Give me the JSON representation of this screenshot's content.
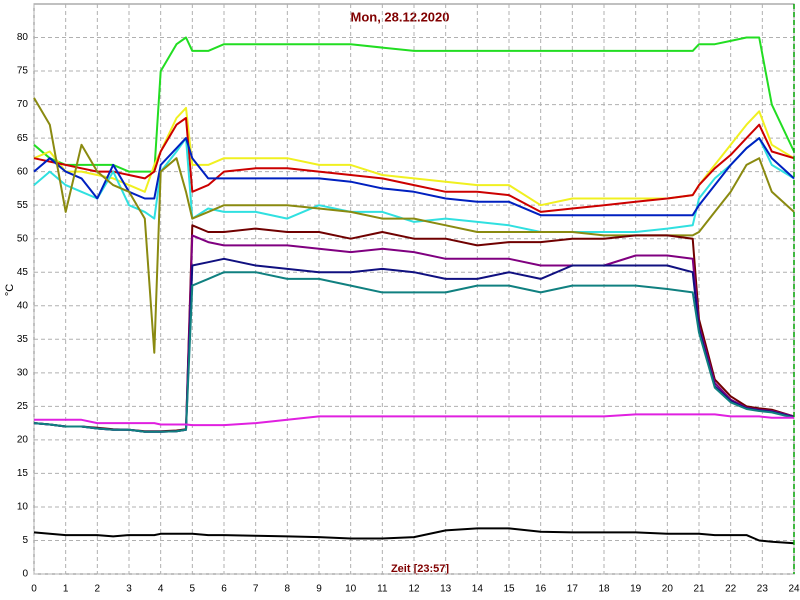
{
  "chart_data": {
    "type": "line",
    "title": "Mon, 28.12.2020",
    "y_label": "°C",
    "x_label": "Zeit [23:57]",
    "x": [
      0,
      0.5,
      1,
      1.5,
      2,
      2.5,
      3,
      3.5,
      3.8,
      4,
      4.5,
      4.8,
      5,
      5.5,
      6,
      7,
      8,
      9,
      10,
      11,
      12,
      13,
      14,
      15,
      16,
      17,
      18,
      19,
      20,
      20.8,
      21,
      21.5,
      22,
      22.5,
      22.9,
      23.3,
      24
    ],
    "xlim": [
      0,
      24
    ],
    "xticks": [
      0,
      1,
      2,
      3,
      4,
      5,
      6,
      7,
      8,
      9,
      10,
      11,
      12,
      13,
      14,
      15,
      16,
      17,
      18,
      19,
      20,
      21,
      22,
      23,
      24
    ],
    "ylim": [
      0,
      85
    ],
    "yticks": [
      0,
      5,
      10,
      15,
      20,
      25,
      30,
      35,
      40,
      45,
      50,
      55,
      60,
      65,
      70,
      75,
      80
    ],
    "grid": true,
    "series": [
      {
        "color": "#22dd22",
        "values": [
          64,
          62,
          61,
          61,
          61,
          61,
          60,
          60,
          60,
          75,
          79,
          80,
          78,
          78,
          79,
          79,
          79,
          79,
          79,
          78.5,
          78,
          78,
          78,
          78,
          78,
          78,
          78,
          78,
          78,
          78,
          79,
          79,
          79.5,
          80,
          80,
          70,
          63
        ]
      },
      {
        "color": "#f0f020",
        "values": [
          62,
          63,
          60,
          60,
          59.5,
          59,
          58,
          57,
          61,
          63,
          68,
          69.5,
          61,
          61,
          62,
          62,
          62,
          61,
          61,
          59.5,
          59,
          58.5,
          58,
          58,
          55,
          56,
          56,
          56,
          56,
          56.5,
          58,
          61,
          64,
          67,
          69,
          64,
          62
        ]
      },
      {
        "color": "#cc0000",
        "values": [
          62,
          61.5,
          61,
          60.5,
          60,
          60,
          59.5,
          59,
          60,
          63,
          67,
          68,
          57,
          58,
          60,
          60.5,
          60.5,
          60,
          59.5,
          59,
          58,
          57,
          57,
          56.5,
          54,
          54.5,
          55,
          55.5,
          56,
          56.5,
          58,
          60.5,
          62.5,
          65,
          67,
          63,
          62
        ]
      },
      {
        "color": "#30e0e0",
        "values": [
          58,
          60,
          58,
          57,
          56,
          60,
          55,
          54,
          53,
          60,
          63,
          65,
          53,
          54.5,
          54,
          54,
          53,
          55,
          54,
          54,
          52.5,
          53,
          52.5,
          52,
          51,
          51,
          51,
          51,
          51.5,
          52,
          56,
          59,
          61,
          63.5,
          65,
          61,
          59
        ]
      },
      {
        "color": "#0020c0",
        "values": [
          60,
          62,
          60,
          59,
          56,
          61,
          57,
          56,
          56,
          61,
          63.5,
          65,
          62,
          59,
          59,
          59,
          59,
          59,
          58.5,
          57.5,
          57,
          56,
          55.5,
          55.5,
          53.5,
          53.5,
          53.5,
          53.5,
          53.5,
          53.5,
          55,
          58,
          61,
          63.5,
          65,
          62,
          59
        ]
      },
      {
        "color": "#8a8a10",
        "values": [
          71,
          67,
          54,
          64,
          60,
          58,
          57,
          53,
          33,
          60,
          62,
          57,
          53,
          54,
          55,
          55,
          55,
          54.5,
          54,
          53,
          53,
          52,
          51,
          51,
          51,
          51,
          50.5,
          50.5,
          50.5,
          50.5,
          51,
          54,
          57,
          61,
          62,
          57,
          54
        ]
      },
      {
        "color": "#700000",
        "values": [
          22.5,
          22.3,
          22,
          22,
          21.8,
          21.6,
          21.5,
          21.3,
          21.3,
          21.3,
          21.4,
          21.6,
          52,
          51,
          51,
          51.5,
          51,
          51,
          50,
          51,
          50,
          50,
          49,
          49.5,
          49.5,
          50,
          50,
          50.5,
          50.5,
          50,
          38,
          29,
          26.5,
          25,
          24.7,
          24.5,
          23.5
        ]
      },
      {
        "color": "#800080",
        "values": [
          22.5,
          22.3,
          22,
          22,
          21.7,
          21.5,
          21.5,
          21.2,
          21.2,
          21.2,
          21.3,
          21.5,
          50.5,
          49.5,
          49,
          49,
          49,
          48.5,
          48,
          48.5,
          48,
          47,
          47,
          47,
          46,
          46,
          46,
          47.5,
          47.5,
          47,
          37,
          28.5,
          26,
          24.8,
          24.5,
          24.3,
          23.5
        ]
      },
      {
        "color": "#101080",
        "values": [
          22.5,
          22.3,
          22,
          22,
          21.7,
          21.5,
          21.5,
          21.2,
          21.2,
          21.2,
          21.3,
          21.5,
          46,
          46.5,
          47,
          46,
          45.5,
          45,
          45,
          45.5,
          45,
          44,
          44,
          45,
          44,
          46,
          46,
          46,
          46,
          45,
          36.5,
          28,
          25.8,
          24.7,
          24.4,
          24.2,
          23.4
        ]
      },
      {
        "color": "#108080",
        "values": [
          22.5,
          22.3,
          22,
          22,
          21.7,
          21.5,
          21.5,
          21.2,
          21.2,
          21.2,
          21.3,
          21.5,
          43,
          44,
          45,
          45,
          44,
          44,
          43,
          42,
          42,
          42,
          43,
          43,
          42,
          43,
          43,
          43,
          42.5,
          42,
          36,
          27.8,
          25.6,
          24.6,
          24.3,
          24.1,
          23.3
        ]
      },
      {
        "color": "#e020e0",
        "values": [
          23,
          23,
          23,
          23,
          22.5,
          22.5,
          22.5,
          22.5,
          22.5,
          22.3,
          22.3,
          22.3,
          22.2,
          22.2,
          22.2,
          22.5,
          23,
          23.5,
          23.5,
          23.5,
          23.5,
          23.5,
          23.5,
          23.5,
          23.5,
          23.5,
          23.5,
          23.8,
          23.8,
          23.8,
          23.8,
          23.8,
          23.5,
          23.5,
          23.5,
          23.3,
          23.3
        ]
      },
      {
        "color": "#000000",
        "values": [
          6.2,
          6,
          5.8,
          5.8,
          5.8,
          5.6,
          5.8,
          5.8,
          5.8,
          6,
          6,
          6,
          6,
          5.8,
          5.8,
          5.7,
          5.6,
          5.5,
          5.3,
          5.3,
          5.5,
          6.5,
          6.8,
          6.8,
          6.3,
          6.2,
          6.2,
          6.2,
          6,
          6,
          6,
          5.8,
          5.8,
          5.8,
          5,
          4.8,
          4.6
        ]
      }
    ]
  }
}
